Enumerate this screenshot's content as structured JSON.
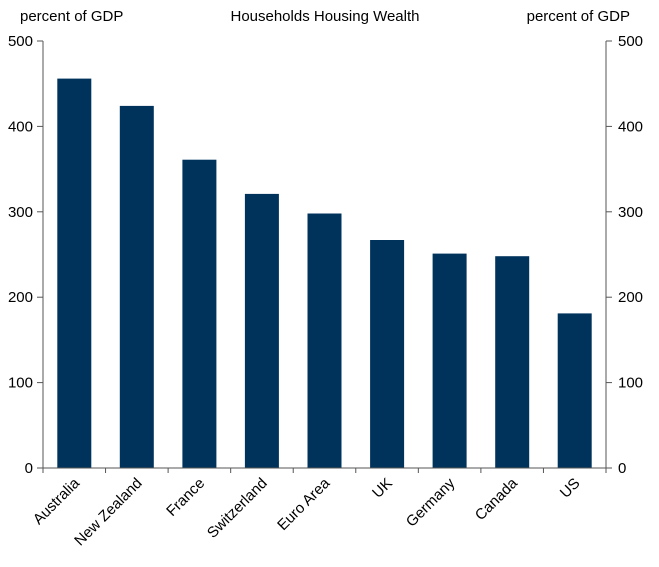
{
  "chart_data": {
    "type": "bar",
    "title": "Households Housing Wealth",
    "ylabel_left": "percent of GDP",
    "ylabel_right": "percent of GDP",
    "xlabel": "",
    "categories": [
      "Australia",
      "New Zealand",
      "France",
      "Switzerland",
      "Euro Area",
      "UK",
      "Germany",
      "Canada",
      "US"
    ],
    "values": [
      456,
      424,
      361,
      321,
      298,
      267,
      251,
      248,
      181
    ],
    "ylim": [
      0,
      500
    ],
    "yticks": [
      0,
      100,
      200,
      300,
      400,
      500
    ],
    "grid": false,
    "bar_color": "#00335C"
  }
}
